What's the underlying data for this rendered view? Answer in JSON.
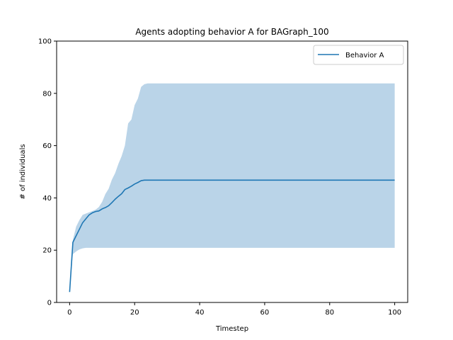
{
  "chart_data": {
    "type": "line",
    "title": "Agents adopting behavior A for BAGraph_100",
    "xlabel": "Timestep",
    "ylabel": "# of individuals",
    "xlim": [
      -4,
      104
    ],
    "ylim": [
      0,
      100
    ],
    "xticks": [
      0,
      20,
      40,
      60,
      80,
      100
    ],
    "yticks": [
      0,
      20,
      40,
      60,
      80,
      100
    ],
    "grid": false,
    "legend_position": "top-right",
    "colors": {
      "line": "#1f77b4",
      "band": "#bad4e8"
    },
    "series": [
      {
        "name": "Behavior A",
        "x": [
          0,
          1,
          2,
          3,
          4,
          5,
          6,
          7,
          8,
          9,
          10,
          11,
          12,
          13,
          14,
          15,
          16,
          17,
          18,
          19,
          20,
          21,
          22,
          23,
          24,
          25,
          30,
          40,
          50,
          60,
          70,
          80,
          90,
          100
        ],
        "mean": [
          4,
          23,
          25.5,
          28,
          30.5,
          32,
          33.5,
          34.3,
          34.8,
          35,
          35.8,
          36.3,
          37,
          38.2,
          39.5,
          40.6,
          41.6,
          43.2,
          43.8,
          44.5,
          45.3,
          45.9,
          46.6,
          46.8,
          46.8,
          46.8,
          46.8,
          46.8,
          46.8,
          46.8,
          46.8,
          46.8,
          46.8,
          46.8
        ],
        "lower": [
          4,
          18.5,
          19.5,
          20.3,
          20.7,
          20.9,
          20.9,
          20.9,
          20.9,
          20.9,
          20.9,
          20.9,
          20.9,
          20.9,
          20.9,
          20.9,
          20.9,
          20.9,
          20.9,
          20.9,
          20.9,
          20.9,
          20.9,
          20.9,
          20.9,
          20.9,
          20.9,
          20.9,
          20.9,
          20.9,
          20.9,
          20.9,
          20.9,
          20.9
        ],
        "upper": [
          4,
          24,
          29,
          31.5,
          33.5,
          34,
          34.5,
          35,
          35.5,
          36.5,
          38.5,
          41.5,
          43.5,
          47,
          49.5,
          53,
          56,
          60,
          68.5,
          70,
          75.5,
          78,
          82.5,
          83.5,
          83.8,
          83.8,
          83.8,
          83.8,
          83.8,
          83.8,
          83.8,
          83.8,
          83.8,
          83.8
        ]
      }
    ]
  }
}
